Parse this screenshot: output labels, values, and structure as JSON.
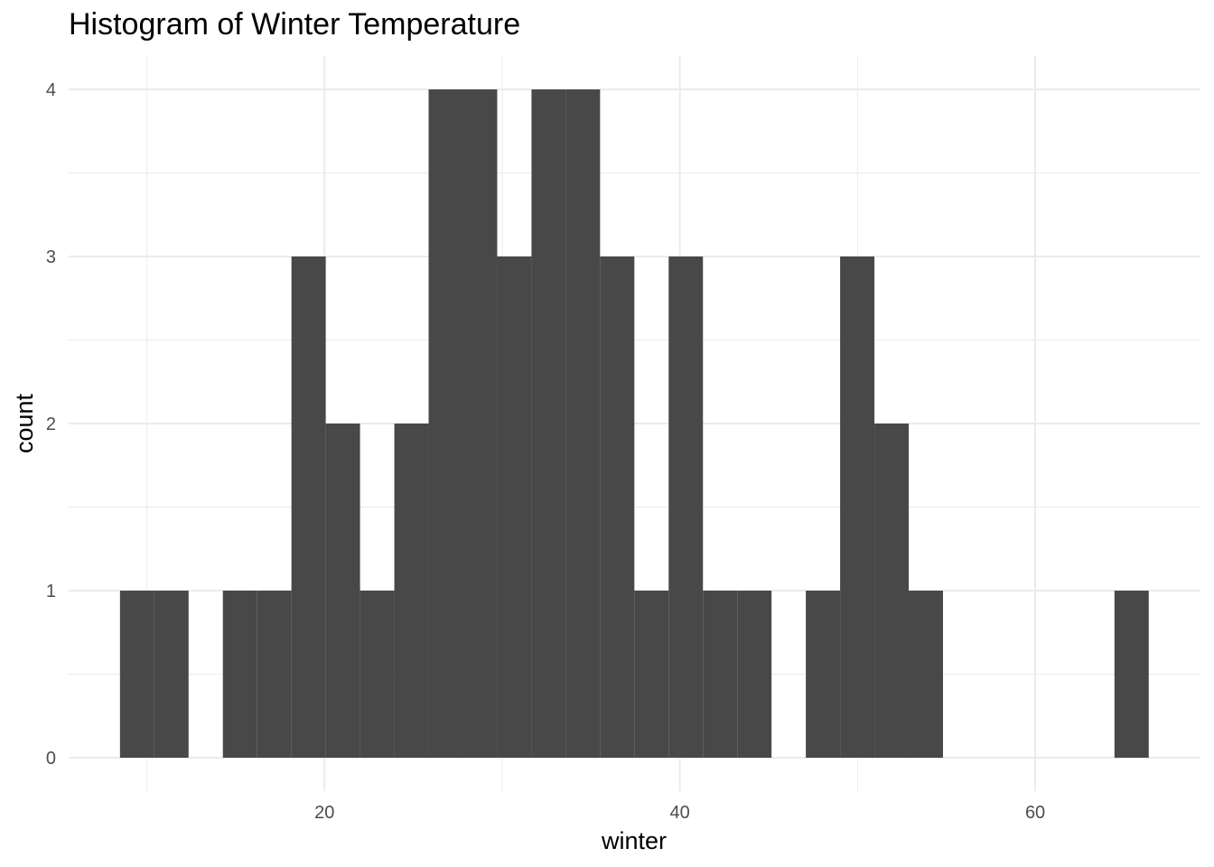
{
  "chart_data": {
    "type": "bar",
    "title": "Histogram of Winter Temperature",
    "xlabel": "winter",
    "ylabel": "count",
    "bins": [
      {
        "start": 8.49,
        "end": 10.42,
        "count": 1
      },
      {
        "start": 10.42,
        "end": 12.35,
        "count": 1
      },
      {
        "start": 12.35,
        "end": 14.28,
        "count": 0
      },
      {
        "start": 14.28,
        "end": 16.21,
        "count": 1
      },
      {
        "start": 16.21,
        "end": 18.14,
        "count": 1
      },
      {
        "start": 18.14,
        "end": 20.07,
        "count": 3
      },
      {
        "start": 20.07,
        "end": 22.0,
        "count": 2
      },
      {
        "start": 22.0,
        "end": 23.93,
        "count": 1
      },
      {
        "start": 23.93,
        "end": 25.86,
        "count": 2
      },
      {
        "start": 25.86,
        "end": 27.79,
        "count": 4
      },
      {
        "start": 27.79,
        "end": 29.72,
        "count": 4
      },
      {
        "start": 29.72,
        "end": 31.65,
        "count": 3
      },
      {
        "start": 31.65,
        "end": 33.58,
        "count": 4
      },
      {
        "start": 33.58,
        "end": 35.51,
        "count": 4
      },
      {
        "start": 35.51,
        "end": 37.44,
        "count": 3
      },
      {
        "start": 37.44,
        "end": 39.37,
        "count": 1
      },
      {
        "start": 39.37,
        "end": 41.3,
        "count": 3
      },
      {
        "start": 41.3,
        "end": 43.23,
        "count": 1
      },
      {
        "start": 43.23,
        "end": 45.16,
        "count": 1
      },
      {
        "start": 45.16,
        "end": 47.09,
        "count": 0
      },
      {
        "start": 47.09,
        "end": 49.02,
        "count": 1
      },
      {
        "start": 49.02,
        "end": 50.95,
        "count": 3
      },
      {
        "start": 50.95,
        "end": 52.88,
        "count": 2
      },
      {
        "start": 52.88,
        "end": 54.81,
        "count": 1
      },
      {
        "start": 54.81,
        "end": 56.74,
        "count": 0
      },
      {
        "start": 56.74,
        "end": 58.67,
        "count": 0
      },
      {
        "start": 58.67,
        "end": 60.6,
        "count": 0
      },
      {
        "start": 60.6,
        "end": 62.53,
        "count": 0
      },
      {
        "start": 62.53,
        "end": 64.46,
        "count": 0
      },
      {
        "start": 64.46,
        "end": 66.39,
        "count": 1
      }
    ],
    "xlim": [
      5.6,
      69.3
    ],
    "ylim": [
      -0.2,
      4.2
    ],
    "x_ticks": [
      20,
      40,
      60
    ],
    "y_ticks": [
      0,
      1,
      2,
      3,
      4
    ],
    "grid": true,
    "bar_color": "#484848",
    "grid_color": "#ebebeb",
    "tick_label_color": "#4d4d4d"
  }
}
